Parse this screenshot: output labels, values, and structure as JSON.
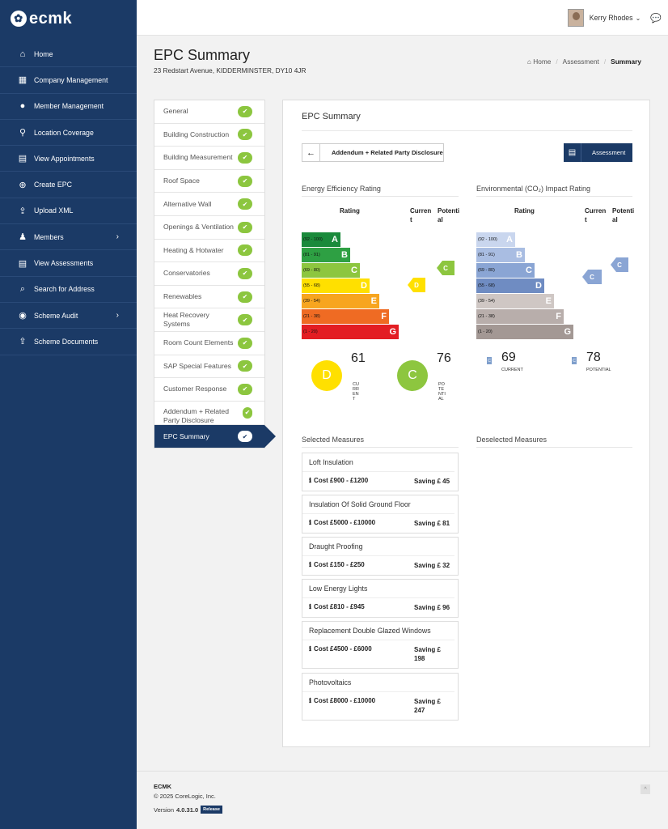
{
  "app": {
    "logo_text": "ecmk"
  },
  "sidebar": {
    "items": [
      {
        "label": "Home",
        "icon": "home-icon",
        "glyph": "⌂",
        "has_submenu": false
      },
      {
        "label": "Company Management",
        "icon": "building-icon",
        "glyph": "▦",
        "has_submenu": false
      },
      {
        "label": "Member Management",
        "icon": "user-icon",
        "glyph": "●",
        "has_submenu": false
      },
      {
        "label": "Location Coverage",
        "icon": "map-pin-icon",
        "glyph": "⚲",
        "has_submenu": false
      },
      {
        "label": "View Appointments",
        "icon": "calendar-icon",
        "glyph": "▤",
        "has_submenu": false
      },
      {
        "label": "Create EPC",
        "icon": "plus-circle-icon",
        "glyph": "⊕",
        "has_submenu": false
      },
      {
        "label": "Upload XML",
        "icon": "upload-icon",
        "glyph": "⇪",
        "has_submenu": false
      },
      {
        "label": "Members",
        "icon": "users-icon",
        "glyph": "♟",
        "has_submenu": true
      },
      {
        "label": "View Assessments",
        "icon": "document-icon",
        "glyph": "▤",
        "has_submenu": false
      },
      {
        "label": "Search for Address",
        "icon": "search-icon",
        "glyph": "⌕",
        "has_submenu": false
      },
      {
        "label": "Scheme Audit",
        "icon": "eye-icon",
        "glyph": "◉",
        "has_submenu": true
      },
      {
        "label": "Scheme Documents",
        "icon": "upload-icon",
        "glyph": "⇪",
        "has_submenu": false
      }
    ]
  },
  "topbar": {
    "user_name": "Kerry Rhodes"
  },
  "header": {
    "title": "EPC Summary",
    "address": "23 Redstart Avenue, KIDDERMINSTER, DY10 4JR",
    "breadcrumb": [
      "Home",
      "Assessment",
      "Summary"
    ]
  },
  "steps": [
    "General",
    "Building Construction",
    "Building Measurement",
    "Roof Space",
    "Alternative Wall",
    "Openings & Ventilation",
    "Heating & Hotwater",
    "Conservatories",
    "Renewables",
    "Heat Recovery Systems",
    "Room Count Elements",
    "SAP Special Features",
    "Customer Response",
    "Addendum + Related Party Disclosure",
    "EPC Summary"
  ],
  "panel": {
    "title": "EPC Summary",
    "back_label": "Addendum + Related Party Disclosure",
    "assessment_label": "Assessment"
  },
  "energy": {
    "heading": "Energy Efficiency Rating",
    "col_rating": "Rating",
    "col_current": "Current",
    "col_potential": "Potential",
    "bands": [
      {
        "range": "(92 - 100)",
        "letter": "A",
        "color": "#1a8a3b"
      },
      {
        "range": "(81 - 91)",
        "letter": "B",
        "color": "#2ea043"
      },
      {
        "range": "(69 - 80)",
        "letter": "C",
        "color": "#8dc63f"
      },
      {
        "range": "(55 - 68)",
        "letter": "D",
        "color": "#ffe000"
      },
      {
        "range": "(39 - 54)",
        "letter": "E",
        "color": "#f7a51f"
      },
      {
        "range": "(21 - 38)",
        "letter": "F",
        "color": "#ef6b23"
      },
      {
        "range": "(1 - 20)",
        "letter": "G",
        "color": "#e31d23"
      }
    ],
    "current": {
      "letter": "D",
      "value": "61",
      "label": "CURRENT",
      "color": "#ffe000"
    },
    "potential": {
      "letter": "C",
      "value": "76",
      "label": "POTENTIAL",
      "color": "#8dc63f"
    }
  },
  "environmental": {
    "heading": "Environmental (CO₂) Impact Rating",
    "col_rating": "Rating",
    "col_current": "Current",
    "col_potential": "Potential",
    "bands": [
      {
        "range": "(92 - 100)",
        "letter": "A",
        "color": "#c9d6ee"
      },
      {
        "range": "(81 - 91)",
        "letter": "B",
        "color": "#a9bde2"
      },
      {
        "range": "(69 - 80)",
        "letter": "C",
        "color": "#8aa5d4"
      },
      {
        "range": "(55 - 68)",
        "letter": "D",
        "color": "#6f8cc2"
      },
      {
        "range": "(39 - 54)",
        "letter": "E",
        "color": "#cfc7c4"
      },
      {
        "range": "(21 - 38)",
        "letter": "F",
        "color": "#b8aeab"
      },
      {
        "range": "(1 - 20)",
        "letter": "G",
        "color": "#a39894"
      }
    ],
    "current": {
      "letter": "C",
      "value": "69",
      "label": "CURRENT"
    },
    "potential": {
      "letter": "C",
      "value": "78",
      "label": "POTENTIAL"
    }
  },
  "selected": {
    "heading": "Selected Measures",
    "items": [
      {
        "title": "Loft Insulation",
        "cost": "Cost £900 - £1200",
        "saving": "Saving £ 45"
      },
      {
        "title": "Insulation Of Solid Ground Floor",
        "cost": "Cost £5000 - £10000",
        "saving": "Saving £ 81"
      },
      {
        "title": "Draught Proofing",
        "cost": "Cost £150 - £250",
        "saving": "Saving £ 32"
      },
      {
        "title": "Low Energy Lights",
        "cost": "Cost £810 - £945",
        "saving": "Saving £ 96"
      },
      {
        "title": "Replacement Double Glazed Windows",
        "cost": "Cost £4500 - £6000",
        "saving": "Saving £ 198"
      },
      {
        "title": "Photovoltaics",
        "cost": "Cost £8000 - £10000",
        "saving": "Saving £ 247"
      }
    ]
  },
  "deselected": {
    "heading": "Deselected Measures"
  },
  "footer": {
    "brand": "ECMK",
    "copyright": "© 2025 CoreLogic, Inc.",
    "version_prefix": "Version",
    "version": "4.0.31.0",
    "badge": "Release"
  }
}
